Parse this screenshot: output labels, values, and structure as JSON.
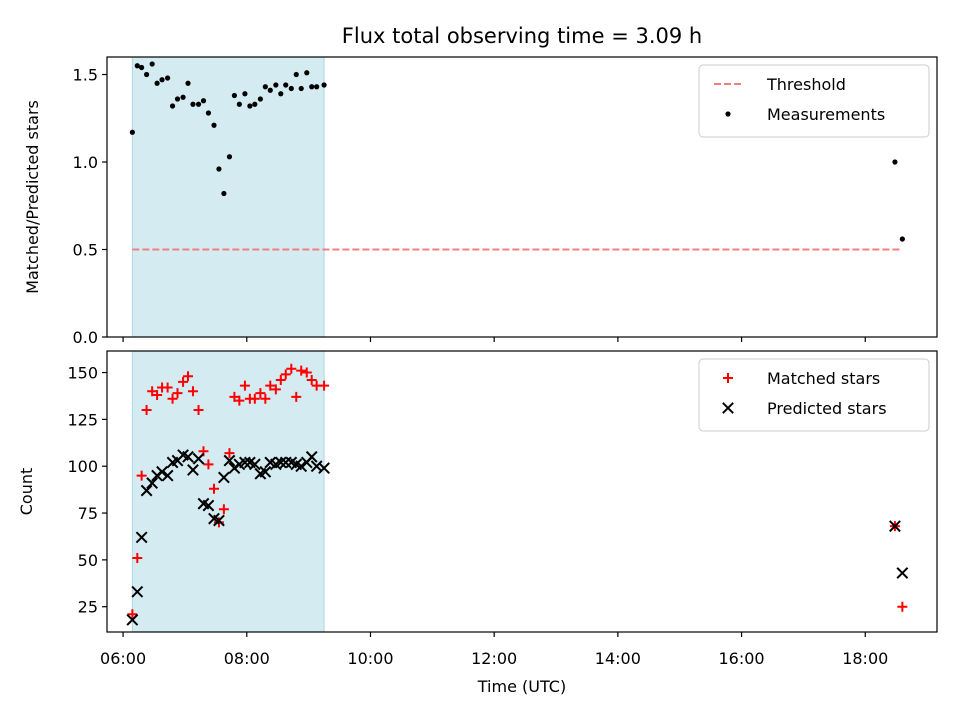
{
  "title": "Flux total observing time = 3.09 h",
  "xlabel": "Time (UTC)",
  "x_ticks": [
    "06:00",
    "08:00",
    "10:00",
    "12:00",
    "14:00",
    "16:00",
    "18:00"
  ],
  "x_tick_hours": [
    6,
    8,
    10,
    12,
    14,
    16,
    18
  ],
  "xlim_hours": [
    5.74,
    19.16
  ],
  "colors": {
    "threshold": "#f08080",
    "span": "#add8e6",
    "measurement": "#000000",
    "matched": "#ff0000",
    "predicted": "#000000"
  },
  "chart_data": [
    {
      "type": "scatter",
      "ylabel": "Matched/Predicted stars",
      "ylim": [
        0.0,
        1.6
      ],
      "y_ticks": [
        "0.0",
        "0.5",
        "1.0",
        "1.5"
      ],
      "y_tick_values": [
        0.0,
        0.5,
        1.0,
        1.5
      ],
      "legend_position": "top-right",
      "span_hours": [
        6.15,
        9.25
      ],
      "threshold": {
        "name": "Threshold",
        "value": 0.5,
        "x_from": 6.15,
        "x_to": 18.6
      },
      "series": [
        {
          "name": "Measurements",
          "marker": "dot",
          "x": [
            6.15,
            6.23,
            6.3,
            6.38,
            6.47,
            6.55,
            6.63,
            6.72,
            6.8,
            6.88,
            6.97,
            7.05,
            7.13,
            7.22,
            7.3,
            7.38,
            7.47,
            7.55,
            7.63,
            7.72,
            7.8,
            7.88,
            7.97,
            8.05,
            8.13,
            8.22,
            8.3,
            8.38,
            8.47,
            8.55,
            8.63,
            8.72,
            8.8,
            8.88,
            8.97,
            9.05,
            9.13,
            9.25,
            18.48,
            18.6
          ],
          "y": [
            1.17,
            1.55,
            1.54,
            1.5,
            1.56,
            1.45,
            1.47,
            1.48,
            1.32,
            1.36,
            1.37,
            1.45,
            1.33,
            1.33,
            1.35,
            1.28,
            1.21,
            0.96,
            0.82,
            1.03,
            1.38,
            1.33,
            1.39,
            1.32,
            1.33,
            1.36,
            1.43,
            1.41,
            1.44,
            1.39,
            1.44,
            1.42,
            1.5,
            1.42,
            1.51,
            1.43,
            1.43,
            1.44,
            1.0,
            0.56
          ]
        }
      ]
    },
    {
      "type": "scatter",
      "ylabel": "Count",
      "ylim": [
        11.5,
        161.5
      ],
      "y_ticks": [
        "25",
        "50",
        "75",
        "100",
        "125",
        "150"
      ],
      "y_tick_values": [
        25,
        50,
        75,
        100,
        125,
        150
      ],
      "legend_position": "top-right",
      "span_hours": [
        6.15,
        9.25
      ],
      "series": [
        {
          "name": "Matched stars",
          "marker": "plus",
          "x": [
            6.15,
            6.23,
            6.3,
            6.38,
            6.47,
            6.55,
            6.63,
            6.72,
            6.8,
            6.88,
            6.97,
            7.05,
            7.13,
            7.22,
            7.3,
            7.38,
            7.47,
            7.55,
            7.63,
            7.72,
            7.8,
            7.88,
            7.97,
            8.05,
            8.13,
            8.22,
            8.3,
            8.38,
            8.47,
            8.55,
            8.63,
            8.72,
            8.8,
            8.88,
            8.97,
            9.05,
            9.13,
            9.25,
            18.48,
            18.6
          ],
          "y": [
            21,
            51,
            95,
            130,
            140,
            138,
            142,
            142,
            136,
            139,
            145,
            148,
            140,
            130,
            108,
            101,
            88,
            70,
            77,
            107,
            137,
            135,
            143,
            136,
            136,
            139,
            136,
            143,
            141,
            146,
            149,
            152,
            137,
            151,
            150,
            146,
            143,
            143,
            68,
            25
          ]
        },
        {
          "name": "Predicted stars",
          "marker": "cross",
          "x": [
            6.15,
            6.23,
            6.3,
            6.38,
            6.47,
            6.55,
            6.63,
            6.72,
            6.8,
            6.88,
            6.97,
            7.05,
            7.13,
            7.22,
            7.3,
            7.38,
            7.47,
            7.55,
            7.63,
            7.72,
            7.8,
            7.88,
            7.97,
            8.05,
            8.13,
            8.22,
            8.3,
            8.38,
            8.47,
            8.55,
            8.63,
            8.72,
            8.8,
            8.88,
            8.97,
            9.05,
            9.13,
            9.25,
            18.48,
            18.6
          ],
          "y": [
            18,
            33,
            62,
            87,
            91,
            95,
            97,
            95,
            102,
            103,
            106,
            105,
            98,
            104,
            80,
            79,
            72,
            71,
            94,
            103,
            99,
            101,
            102,
            102,
            101,
            96,
            97,
            102,
            101,
            102,
            102,
            102,
            101,
            100,
            102,
            105,
            100,
            99,
            68,
            43
          ]
        }
      ]
    }
  ]
}
